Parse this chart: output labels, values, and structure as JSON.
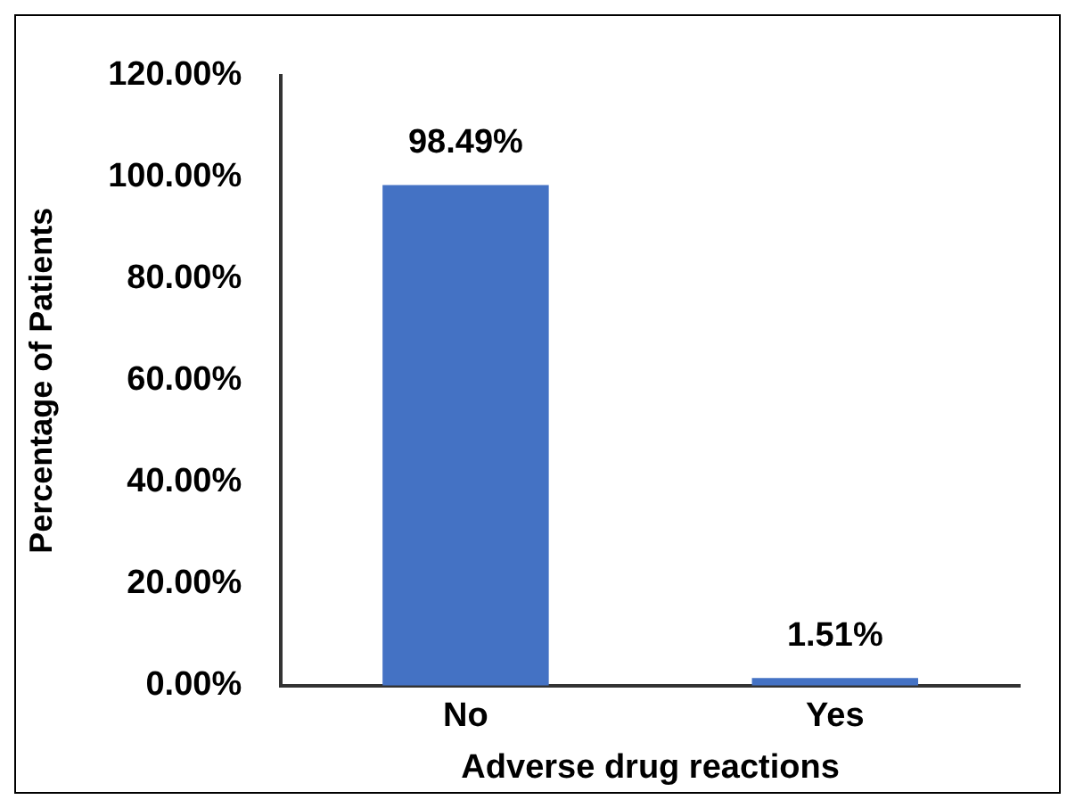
{
  "chart_data": {
    "type": "bar",
    "xlabel": "Adverse drug reactions",
    "ylabel": "Percentage of Patients",
    "categories": [
      "No",
      "Yes"
    ],
    "values": [
      98.49,
      1.51
    ],
    "value_labels": [
      "98.49%",
      "1.51%"
    ],
    "color": "#4472c4",
    "ylim": [
      0,
      120
    ],
    "yticks": [
      {
        "value": 0,
        "label": "0.00%"
      },
      {
        "value": 20,
        "label": "20.00%"
      },
      {
        "value": 40,
        "label": "40.00%"
      },
      {
        "value": 60,
        "label": "60.00%"
      },
      {
        "value": 80,
        "label": "80.00%"
      },
      {
        "value": 100,
        "label": "100.00%"
      },
      {
        "value": 120,
        "label": "120.00%"
      }
    ],
    "grid": false,
    "legend": false
  }
}
